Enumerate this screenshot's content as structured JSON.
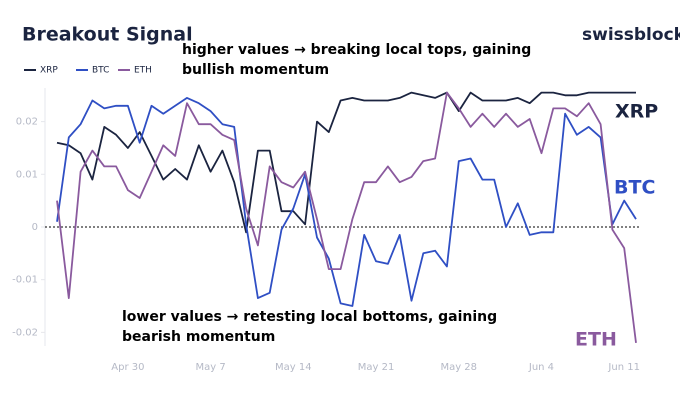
{
  "chart_data": {
    "type": "line",
    "title": "Breakout Signal",
    "brand": "swissblock",
    "annotations": [
      "higher values → breaking local tops, gaining",
      "bullish momentum",
      "lower values → retesting local bottoms, gaining",
      "bearish momentum"
    ],
    "categories": [
      null,
      null,
      null,
      null,
      null,
      null,
      "Apr 30",
      null,
      null,
      null,
      null,
      null,
      null,
      "May 7",
      null,
      null,
      null,
      null,
      null,
      null,
      "May 14",
      null,
      null,
      null,
      null,
      null,
      null,
      "May 21",
      null,
      null,
      null,
      null,
      null,
      null,
      "May 28",
      null,
      null,
      null,
      null,
      null,
      null,
      "Jun 4",
      null,
      null,
      null,
      null,
      null,
      null,
      "Jun 11",
      null
    ],
    "series": [
      {
        "name": "XRP",
        "color": "#1b2440",
        "values": [
          0.016,
          0.0155,
          0.014,
          0.009,
          0.019,
          0.0175,
          0.015,
          0.018,
          0.0135,
          0.009,
          0.011,
          0.009,
          0.0155,
          0.0105,
          0.0145,
          0.0085,
          -0.001,
          0.0145,
          0.0145,
          0.003,
          0.003,
          0.0005,
          0.02,
          0.018,
          0.024,
          0.0245,
          0.024,
          0.024,
          0.024,
          0.0245,
          0.0255,
          0.025,
          0.0245,
          0.0255,
          0.022,
          0.0255,
          0.024,
          0.024,
          0.024,
          0.0245,
          0.0235,
          0.0255,
          0.0255,
          0.025,
          0.025,
          0.0255,
          0.0255,
          0.0255,
          0.0255,
          0.0255
        ]
      },
      {
        "name": "BTC",
        "color": "#2f4fc4",
        "values": [
          0.001,
          0.017,
          0.0195,
          0.024,
          0.0225,
          0.023,
          0.023,
          0.016,
          0.023,
          0.0215,
          0.023,
          0.0245,
          0.0235,
          0.022,
          0.0195,
          0.019,
          0.0005,
          -0.0135,
          -0.0125,
          -0.0005,
          0.0035,
          0.01,
          -0.002,
          -0.006,
          -0.0145,
          -0.015,
          -0.0015,
          -0.0065,
          -0.007,
          -0.0015,
          -0.014,
          -0.005,
          -0.0045,
          -0.0075,
          0.0125,
          0.013,
          0.009,
          0.009,
          0.0,
          0.0045,
          -0.0015,
          -0.001,
          -0.001,
          0.0215,
          0.0175,
          0.019,
          0.017,
          0.0005,
          0.005,
          0.0015
        ]
      },
      {
        "name": "ETH",
        "color": "#8a5a9e",
        "values": [
          0.005,
          -0.0135,
          0.0105,
          0.0145,
          0.0115,
          0.0115,
          0.007,
          0.0055,
          0.0105,
          0.0155,
          0.0135,
          0.0235,
          0.0195,
          0.0195,
          0.0175,
          0.0165,
          0.0035,
          -0.0035,
          0.0115,
          0.0085,
          0.0075,
          0.0105,
          0.0015,
          -0.008,
          -0.008,
          0.0015,
          0.0085,
          0.0085,
          0.0115,
          0.0085,
          0.0095,
          0.0125,
          0.013,
          0.0255,
          0.0225,
          0.019,
          0.0215,
          0.019,
          0.0215,
          0.019,
          0.0205,
          0.014,
          0.0225,
          0.0225,
          0.021,
          0.0235,
          0.0195,
          -0.0005,
          -0.004,
          -0.022
        ]
      }
    ],
    "ylim": [
      -0.0224,
      0.026
    ],
    "yticks": [
      -0.02,
      -0.01,
      0,
      0.01,
      0.02
    ],
    "zero_line": true
  }
}
